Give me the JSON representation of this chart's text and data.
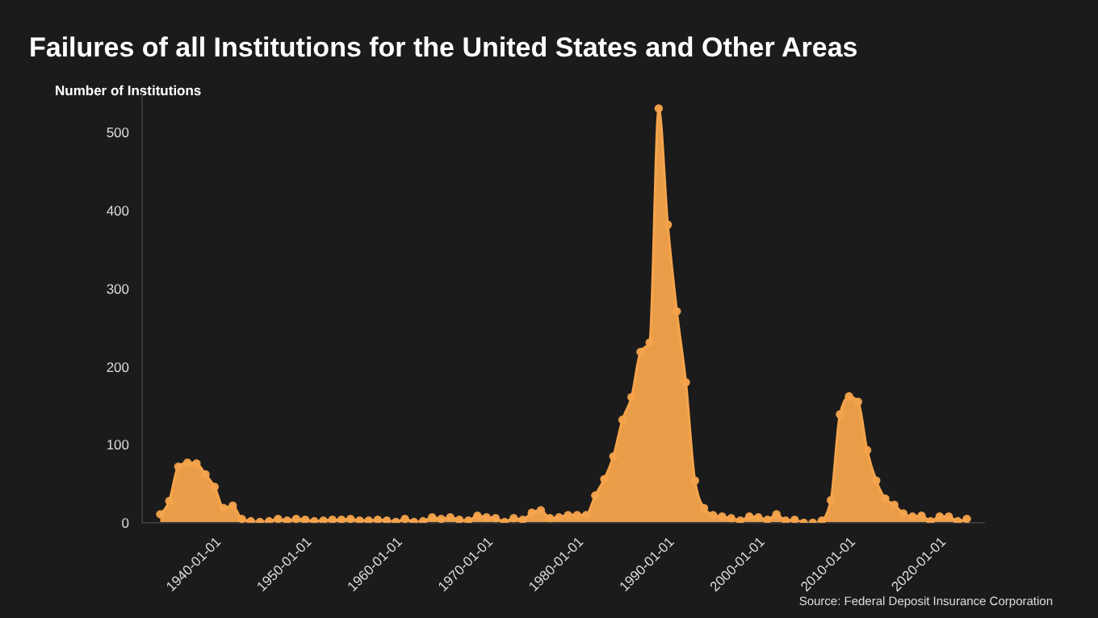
{
  "chart_data": {
    "type": "area",
    "title": "Failures of all Institutions for the United States and Other Areas",
    "ylabel": "Number of Institutions",
    "annotations": [
      "Source: Federal Deposit Insurance Corporation"
    ],
    "x": [
      "1934",
      "1935",
      "1936",
      "1937",
      "1938",
      "1939",
      "1940",
      "1941",
      "1942",
      "1943",
      "1944",
      "1945",
      "1946",
      "1947",
      "1948",
      "1949",
      "1950",
      "1951",
      "1952",
      "1953",
      "1954",
      "1955",
      "1956",
      "1957",
      "1958",
      "1959",
      "1960",
      "1961",
      "1962",
      "1963",
      "1964",
      "1965",
      "1966",
      "1967",
      "1968",
      "1969",
      "1970",
      "1971",
      "1972",
      "1973",
      "1974",
      "1975",
      "1976",
      "1977",
      "1978",
      "1979",
      "1980",
      "1981",
      "1982",
      "1983",
      "1984",
      "1985",
      "1986",
      "1987",
      "1988",
      "1989",
      "1990",
      "1991",
      "1992",
      "1993",
      "1994",
      "1995",
      "1996",
      "1997",
      "1998",
      "1999",
      "2000",
      "2001",
      "2002",
      "2003",
      "2004",
      "2005",
      "2006",
      "2007",
      "2008",
      "2009",
      "2010",
      "2011",
      "2012",
      "2013",
      "2014",
      "2015",
      "2016",
      "2017",
      "2018",
      "2019",
      "2020",
      "2021",
      "2022",
      "2023"
    ],
    "series": [
      {
        "color": "#f6a44c",
        "values": [
          11,
          28,
          72,
          77,
          76,
          62,
          46,
          19,
          22,
          5,
          2,
          1,
          2,
          5,
          3,
          5,
          4,
          2,
          3,
          4,
          4,
          5,
          3,
          3,
          4,
          3,
          1,
          5,
          1,
          2,
          7,
          5,
          7,
          4,
          3,
          9,
          7,
          6,
          1,
          6,
          4,
          13,
          16,
          6,
          7,
          10,
          10,
          10,
          35,
          56,
          85,
          132,
          161,
          219,
          231,
          531,
          382,
          271,
          180,
          54,
          19,
          10,
          8,
          6,
          3,
          8,
          7,
          4,
          11,
          3,
          4,
          0,
          0,
          3,
          29,
          139,
          162,
          155,
          93,
          54,
          31,
          23,
          12,
          8,
          9,
          2,
          8,
          8,
          2,
          5
        ]
      }
    ],
    "xlim": [
      "1932",
      "2025"
    ],
    "xticks": [
      "1940-01-01",
      "1950-01-01",
      "1960-01-01",
      "1970-01-01",
      "1980-01-01",
      "1990-01-01",
      "2000-01-01",
      "2010-01-01",
      "2020-01-01"
    ],
    "ylim": [
      0,
      550
    ],
    "yticks": [
      0,
      100,
      200,
      300,
      400,
      500
    ],
    "grid": false,
    "legend": false,
    "marker": "circle",
    "line_style": "solid"
  }
}
